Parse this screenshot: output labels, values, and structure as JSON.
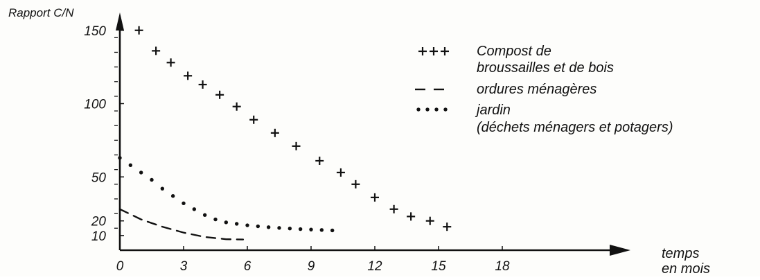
{
  "chart_data": {
    "type": "scatter",
    "ylabel": "Rapport C/N",
    "xlabel_lines": [
      "temps",
      "en mois"
    ],
    "x_ticks": [
      0,
      3,
      6,
      9,
      12,
      15,
      18
    ],
    "y_ticks": [
      10,
      20,
      50,
      100,
      150
    ],
    "xlim": [
      0,
      20
    ],
    "ylim": [
      0,
      160
    ],
    "colors": {
      "ink": "#111111",
      "background": "#fdfdfb"
    },
    "series": [
      {
        "legend_lines": [
          "Compost de",
          "broussailles et de bois"
        ],
        "marker": "plus",
        "legend_symbol": "+++",
        "points": [
          [
            0.9,
            150
          ],
          [
            1.7,
            136
          ],
          [
            2.4,
            128
          ],
          [
            3.2,
            119
          ],
          [
            3.9,
            113
          ],
          [
            4.7,
            106
          ],
          [
            5.5,
            98
          ],
          [
            6.3,
            89
          ],
          [
            7.3,
            80
          ],
          [
            8.3,
            71
          ],
          [
            9.4,
            61
          ],
          [
            10.4,
            53
          ],
          [
            11.1,
            45
          ],
          [
            12.0,
            36
          ],
          [
            12.9,
            28
          ],
          [
            13.7,
            23
          ],
          [
            14.6,
            20
          ],
          [
            15.4,
            16
          ]
        ]
      },
      {
        "legend_lines": [
          "ordures ménagères"
        ],
        "marker": "dash",
        "legend_symbol": "— —",
        "points": [
          [
            0,
            28
          ],
          [
            1,
            21
          ],
          [
            2,
            16
          ],
          [
            3,
            12
          ],
          [
            4,
            9
          ],
          [
            5,
            7.5
          ],
          [
            5.8,
            7.3
          ]
        ]
      },
      {
        "legend_lines": [
          "jardin",
          "(déchets ménagers et potagers)"
        ],
        "marker": "dot",
        "legend_symbol": "•••",
        "points": [
          [
            0,
            63
          ],
          [
            0.5,
            58
          ],
          [
            1,
            53
          ],
          [
            1.5,
            48
          ],
          [
            2,
            42
          ],
          [
            2.5,
            37
          ],
          [
            3,
            32
          ],
          [
            3.5,
            28
          ],
          [
            4,
            24
          ],
          [
            4.5,
            21
          ],
          [
            5,
            19
          ],
          [
            5.5,
            18
          ],
          [
            6,
            17
          ],
          [
            6.5,
            16.3
          ],
          [
            7,
            15.7
          ],
          [
            7.5,
            15.2
          ],
          [
            8,
            14.8
          ],
          [
            8.5,
            14.4
          ],
          [
            9,
            14.1
          ],
          [
            9.5,
            13.8
          ],
          [
            10,
            13.5
          ]
        ]
      }
    ]
  }
}
